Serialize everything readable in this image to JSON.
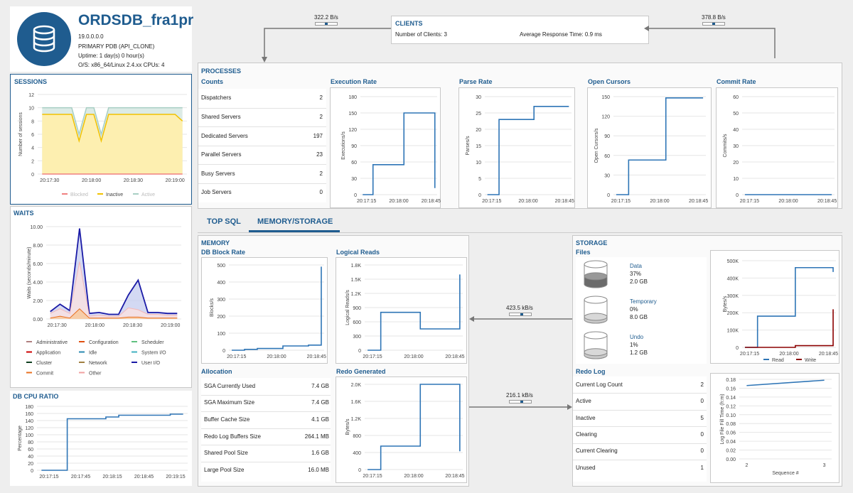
{
  "db": {
    "name": "ORDSDB_fra1pr",
    "version": "19.0.0.0.0",
    "role": "PRIMARY PDB (API_CLONE)",
    "uptime": "Uptime: 1 day(s) 0 hour(s)",
    "os": "O/S: x86_64/Linux 2.4.xx CPUs: 4",
    "icon": "database-icon"
  },
  "clients": {
    "title": "CLIENTS",
    "count_label": "Number of Clients: 3",
    "resp_label": "Average Response Time: 0.9 ms",
    "in_rate": "322.2 B/s",
    "out_rate": "378.8 B/s"
  },
  "processes": {
    "title": "PROCESSES",
    "counts_title": "Counts",
    "rows": [
      {
        "label": "Dispatchers",
        "value": "2"
      },
      {
        "label": "Shared Servers",
        "value": "2"
      },
      {
        "label": "Dedicated Servers",
        "value": "197"
      },
      {
        "label": "Parallel Servers",
        "value": "23"
      },
      {
        "label": "Busy Servers",
        "value": "2"
      },
      {
        "label": "Job Servers",
        "value": "0"
      }
    ]
  },
  "tabs": {
    "top_sql": "TOP SQL",
    "memory_storage": "MEMORY/STORAGE"
  },
  "memory": {
    "title": "MEMORY",
    "allocation_title": "Allocation",
    "rows": [
      {
        "label": "SGA Currently Used",
        "value": "7.4 GB"
      },
      {
        "label": "SGA Maximum Size",
        "value": "7.4 GB"
      },
      {
        "label": "Buffer Cache Size",
        "value": "4.1 GB"
      },
      {
        "label": "Redo Log Buffers Size",
        "value": "264.1 MB"
      },
      {
        "label": "Shared Pool Size",
        "value": "1.6 GB"
      },
      {
        "label": "Large Pool Size",
        "value": "16.0 MB"
      }
    ],
    "read_rate": "423.5 kB/s",
    "write_rate": "216.1 kB/s"
  },
  "storage": {
    "title": "STORAGE",
    "files_title": "Files",
    "files": [
      {
        "name": "Data",
        "pct": "37%",
        "size": "2.0 GB",
        "fill": 0.37
      },
      {
        "name": "Temporary",
        "pct": "0%",
        "size": "8.0 GB",
        "fill": 0.0
      },
      {
        "name": "Undo",
        "pct": "1%",
        "size": "1.2 GB",
        "fill": 0.01
      }
    ],
    "redo_title": "Redo Log",
    "redo_rows": [
      {
        "label": "Current Log Count",
        "value": "2"
      },
      {
        "label": "Active",
        "value": "0"
      },
      {
        "label": "Inactive",
        "value": "5"
      },
      {
        "label": "Clearing",
        "value": "0"
      },
      {
        "label": "Current Clearing",
        "value": "0"
      },
      {
        "label": "Unused",
        "value": "1"
      }
    ]
  },
  "colors": {
    "accent": "#1f5c8f",
    "line": "#2e75b6",
    "inactive": "#f2c200",
    "active": "#a8cfc4",
    "blocked": "#f08080",
    "write": "#8b0000"
  },
  "chart_data": [
    {
      "id": "sessions",
      "title": "SESSIONS",
      "type": "area",
      "ylabel": "Number of sessions",
      "ylim": [
        0,
        12
      ],
      "yticks": [
        "0",
        "2",
        "4",
        "6",
        "8",
        "10",
        "12"
      ],
      "xticks": [
        "20:17:30",
        "20:18:00",
        "20:18:30",
        "20:19:00"
      ],
      "x": [
        0,
        2,
        4,
        5,
        6,
        7,
        8,
        9,
        10,
        11,
        12,
        14,
        16,
        18,
        19
      ],
      "series": [
        {
          "name": "Blocked",
          "values": [
            0,
            0,
            0,
            0,
            0,
            0,
            0,
            0,
            0,
            0,
            0,
            0,
            0,
            0,
            0
          ]
        },
        {
          "name": "Inactive",
          "values": [
            9,
            9,
            9,
            5,
            9,
            9,
            5,
            9,
            9,
            9,
            9,
            9,
            9,
            9,
            8
          ]
        },
        {
          "name": "Active",
          "values": [
            10,
            10,
            10,
            6,
            10,
            10,
            6,
            10,
            10,
            10,
            10,
            10,
            10,
            10,
            10
          ]
        }
      ],
      "legend": [
        "Blocked",
        "Inactive",
        "Active"
      ]
    },
    {
      "id": "waits",
      "title": "WAITS",
      "type": "area",
      "ylabel": "Waits (seconds/minute)",
      "ylim": [
        0,
        10
      ],
      "yticks": [
        "0.00",
        "2.00",
        "4.00",
        "6.00",
        "8.00",
        "10.00"
      ],
      "xticks": [
        "20:17:30",
        "20:18:00",
        "20:18:30",
        "20:19:00"
      ],
      "x": [
        0,
        1,
        2,
        3,
        4,
        5,
        6,
        7,
        8,
        9,
        10,
        11,
        12,
        13
      ],
      "series": [
        {
          "name": "User I/O",
          "values": [
            0.8,
            1.6,
            0.9,
            9.8,
            0.6,
            0.7,
            0.5,
            0.5,
            2.6,
            4.2,
            0.7,
            0.7,
            0.6,
            0.6
          ]
        },
        {
          "name": "Other",
          "values": [
            0.6,
            1.1,
            0.6,
            6.2,
            0.3,
            0.4,
            0.3,
            0.3,
            1.2,
            1.0,
            0.5,
            0.5,
            0.4,
            0.4
          ]
        },
        {
          "name": "Commit",
          "values": [
            0.1,
            0.3,
            0.1,
            1.1,
            0.1,
            0.1,
            0.1,
            0.1,
            0.2,
            0.2,
            0.1,
            0.1,
            0.1,
            0.1
          ]
        }
      ],
      "legend": [
        "Administrative",
        "Configuration",
        "Scheduler",
        "Application",
        "Idle",
        "System I/O",
        "Cluster",
        "Network",
        "User I/O",
        "Commit",
        "Other"
      ]
    },
    {
      "id": "cpu",
      "title": "DB CPU RATIO",
      "type": "line",
      "ylabel": "Percentage",
      "ylim": [
        0,
        180
      ],
      "yticks": [
        "0",
        "20",
        "40",
        "60",
        "80",
        "100",
        "120",
        "140",
        "160",
        "180"
      ],
      "xticks": [
        "20:17:15",
        "20:17:45",
        "20:18:15",
        "20:18:45",
        "20:19:15"
      ],
      "x": [
        0,
        1,
        2,
        3,
        4,
        5,
        6,
        7,
        8,
        9,
        10,
        11
      ],
      "values": [
        0,
        0,
        145,
        145,
        145,
        150,
        155,
        155,
        155,
        155,
        158,
        158
      ]
    },
    {
      "id": "exec",
      "title": "Execution Rate",
      "type": "line",
      "ylabel": "Executions/s",
      "ylim": [
        0,
        180
      ],
      "yticks": [
        "0",
        "30",
        "60",
        "90",
        "120",
        "150",
        "180"
      ],
      "xticks": [
        "20:17:15",
        "20:18:00",
        "20:18:45"
      ],
      "x": [
        0,
        1,
        2,
        3,
        4,
        5,
        6,
        7
      ],
      "values": [
        0,
        55,
        55,
        55,
        150,
        150,
        150,
        12
      ]
    },
    {
      "id": "parse",
      "title": "Parse Rate",
      "type": "line",
      "ylabel": "Parses/s",
      "ylim": [
        0,
        30
      ],
      "yticks": [
        "0",
        "5",
        "10",
        "15",
        "20",
        "25",
        "30"
      ],
      "xticks": [
        "20:17:15",
        "20:18:00",
        "20:18:45"
      ],
      "x": [
        0,
        1,
        2,
        3,
        4,
        5,
        6,
        7
      ],
      "values": [
        0,
        23,
        23,
        23,
        27,
        27,
        27,
        27
      ]
    },
    {
      "id": "cursors",
      "title": "Open Cursors",
      "type": "line",
      "ylabel": "Open Cursors/s",
      "ylim": [
        0,
        150
      ],
      "yticks": [
        "0",
        "30",
        "60",
        "90",
        "120",
        "150"
      ],
      "xticks": [
        "20:17:15",
        "20:18:00",
        "20:18:45"
      ],
      "x": [
        0,
        1,
        2,
        3,
        4,
        5,
        6,
        7
      ],
      "values": [
        0,
        53,
        53,
        53,
        148,
        148,
        148,
        148
      ]
    },
    {
      "id": "commit",
      "title": "Commit Rate",
      "type": "line",
      "ylabel": "Commits/s",
      "ylim": [
        0,
        60
      ],
      "yticks": [
        "0",
        "10",
        "20",
        "30",
        "40",
        "50",
        "60"
      ],
      "xticks": [
        "20:17:15",
        "20:18:00",
        "20:18:45"
      ],
      "x": [
        0,
        1,
        2,
        3,
        4,
        5,
        6,
        7
      ],
      "values": [
        0,
        0,
        0,
        0,
        0,
        0,
        0,
        0
      ]
    },
    {
      "id": "block",
      "title": "DB Block Rate",
      "type": "line",
      "ylabel": "Blocks/s",
      "ylim": [
        0,
        500
      ],
      "yticks": [
        "0",
        "100",
        "200",
        "300",
        "400",
        "500"
      ],
      "xticks": [
        "20:17:15",
        "20:18:00",
        "20:18:45"
      ],
      "x": [
        0,
        1,
        2,
        3,
        4,
        5,
        6,
        7
      ],
      "values": [
        0,
        5,
        10,
        10,
        25,
        25,
        30,
        490
      ]
    },
    {
      "id": "lreads",
      "title": "Logical Reads",
      "type": "line",
      "ylabel": "Logical Reads/s",
      "ylim": [
        0,
        1800
      ],
      "yticks": [
        "0",
        "300",
        "600",
        "900",
        "1.2K",
        "1.5K",
        "1.8K"
      ],
      "xticks": [
        "20:17:15",
        "20:18:00",
        "20:18:45"
      ],
      "x": [
        0,
        1,
        2,
        3,
        4,
        5,
        6,
        7
      ],
      "values": [
        0,
        800,
        800,
        800,
        450,
        450,
        450,
        1600
      ]
    },
    {
      "id": "redo",
      "title": "Redo Generated",
      "type": "line",
      "ylabel": "Bytes/s",
      "ylim": [
        0,
        2000
      ],
      "yticks": [
        "0",
        "400",
        "800",
        "1.2K",
        "1.6K",
        "2.0K"
      ],
      "xticks": [
        "20:17:15",
        "20:18:00",
        "20:18:45"
      ],
      "x": [
        0,
        1,
        2,
        3,
        4,
        5,
        6,
        7
      ],
      "values": [
        0,
        550,
        550,
        550,
        2000,
        2000,
        2000,
        430
      ]
    },
    {
      "id": "files",
      "title": "",
      "type": "line",
      "ylabel": "Bytes/s",
      "ylim": [
        0,
        500000
      ],
      "yticks": [
        "0",
        "100K",
        "200K",
        "300K",
        "400K",
        "500K"
      ],
      "xticks": [
        "20:17:15",
        "20:18:00",
        "20:18:45"
      ],
      "x": [
        0,
        1,
        2,
        3,
        4,
        5,
        6,
        7
      ],
      "series": [
        {
          "name": "Read",
          "values": [
            0,
            180000,
            180000,
            180000,
            460000,
            460000,
            460000,
            435000
          ]
        },
        {
          "name": "Write",
          "values": [
            0,
            0,
            0,
            0,
            10000,
            10000,
            10000,
            220000
          ]
        }
      ],
      "legend": [
        "Read",
        "Write"
      ]
    },
    {
      "id": "logfill",
      "title": "",
      "type": "line",
      "ylabel": "Log File Fill Time (h:m)",
      "xlabel": "Sequence #",
      "ylim": [
        0,
        0.18
      ],
      "yticks": [
        "0.00",
        "0.02",
        "0.04",
        "0.06",
        "0.08",
        "0.10",
        "0.12",
        "0.14",
        "0.16",
        "0.18"
      ],
      "xticks": [
        "2",
        "3"
      ],
      "x": [
        2,
        3
      ],
      "values": [
        0.166,
        0.178
      ]
    }
  ]
}
